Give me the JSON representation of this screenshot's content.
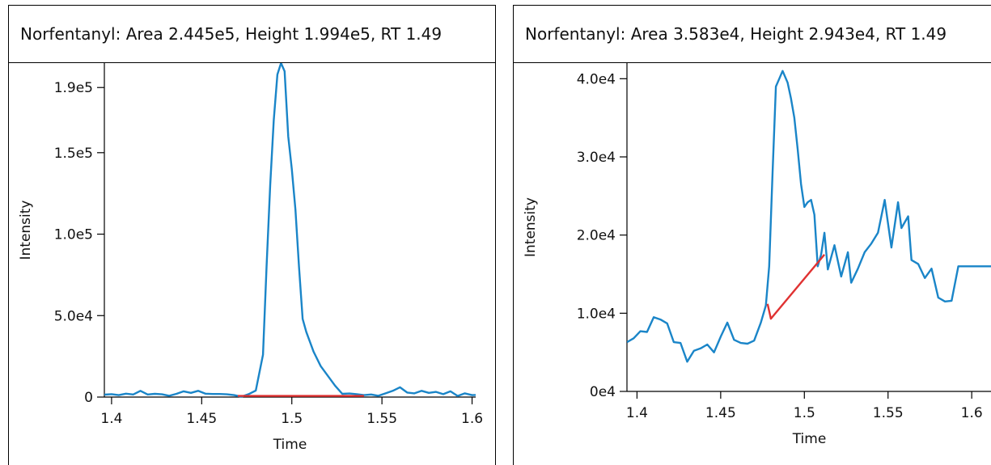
{
  "colors": {
    "trace": "#1a85c8",
    "baseline": "#e03232",
    "axis": "#000000"
  },
  "chart_data": [
    {
      "type": "line",
      "title": "Norfentanyl: Area 2.445e5, Height 1.994e5, RT 1.49",
      "xlabel": "Time",
      "ylabel": "Intensity",
      "xlim": [
        1.396,
        1.602
      ],
      "ylim": [
        0,
        205000.0
      ],
      "xticks": [
        1.4,
        1.45,
        1.5,
        1.55,
        1.6
      ],
      "xtick_labels": [
        "1.4",
        "1.45",
        "1.5",
        "1.55",
        "1.6"
      ],
      "yticks": [
        0,
        50000,
        100000,
        150000,
        190000
      ],
      "ytick_labels": [
        "0",
        "5.0e4",
        "1.0e5",
        "1.5e5",
        "1.9e5"
      ],
      "grid": false,
      "series": [
        {
          "role": "trace",
          "x": [
            1.396,
            1.4,
            1.404,
            1.408,
            1.412,
            1.416,
            1.42,
            1.424,
            1.428,
            1.432,
            1.436,
            1.44,
            1.444,
            1.448,
            1.452,
            1.456,
            1.46,
            1.464,
            1.468,
            1.472,
            1.476,
            1.48,
            1.484,
            1.486,
            1.488,
            1.49,
            1.492,
            1.494,
            1.496,
            1.498,
            1.5,
            1.502,
            1.504,
            1.506,
            1.508,
            1.512,
            1.516,
            1.52,
            1.524,
            1.528,
            1.532,
            1.536,
            1.54,
            1.544,
            1.548,
            1.552,
            1.556,
            1.56,
            1.564,
            1.568,
            1.572,
            1.576,
            1.58,
            1.584,
            1.588,
            1.592,
            1.596,
            1.6,
            1.602
          ],
          "y": [
            1500,
            1800,
            1200,
            2100,
            1600,
            3800,
            1600,
            2000,
            1700,
            800,
            2000,
            3500,
            2600,
            3800,
            2100,
            1900,
            1900,
            1700,
            1200,
            200,
            1800,
            4000,
            26000,
            80000,
            130000,
            170000,
            198000,
            205000,
            200000,
            160000,
            140000,
            115000,
            80000,
            48000,
            40000,
            28000,
            19000,
            13000,
            7000,
            2000,
            2200,
            1800,
            1200,
            1600,
            800,
            2300,
            3800,
            6000,
            2800,
            2300,
            3800,
            2600,
            3200,
            1800,
            3500,
            700,
            2300,
            1200,
            1300
          ]
        },
        {
          "role": "baseline",
          "x": [
            1.47,
            1.54
          ],
          "y": [
            700,
            700
          ]
        }
      ]
    },
    {
      "type": "line",
      "title": "Norfentanyl: Area 3.583e4, Height 2.943e4, RT 1.49",
      "xlabel": "Time",
      "ylabel": "Intensity",
      "xlim": [
        1.394,
        1.612
      ],
      "ylim": [
        0,
        42000
      ],
      "xticks": [
        1.4,
        1.45,
        1.5,
        1.55,
        1.6
      ],
      "xtick_labels": [
        "1.4",
        "1.45",
        "1.5",
        "1.55",
        "1.6"
      ],
      "yticks": [
        0,
        10000,
        20000,
        30000,
        40000
      ],
      "ytick_labels": [
        "0e4",
        "1.0e4",
        "2.0e4",
        "3.0e4",
        "4.0e4"
      ],
      "grid": false,
      "series": [
        {
          "role": "trace",
          "x": [
            1.394,
            1.398,
            1.402,
            1.406,
            1.41,
            1.414,
            1.418,
            1.422,
            1.426,
            1.43,
            1.434,
            1.438,
            1.442,
            1.446,
            1.45,
            1.454,
            1.458,
            1.462,
            1.466,
            1.47,
            1.474,
            1.477,
            1.479,
            1.481,
            1.483,
            1.485,
            1.487,
            1.49,
            1.492,
            1.494,
            1.496,
            1.498,
            1.5,
            1.502,
            1.504,
            1.506,
            1.508,
            1.51,
            1.512,
            1.514,
            1.518,
            1.522,
            1.526,
            1.528,
            1.532,
            1.536,
            1.54,
            1.544,
            1.548,
            1.552,
            1.556,
            1.558,
            1.562,
            1.564,
            1.568,
            1.572,
            1.576,
            1.58,
            1.584,
            1.588,
            1.592,
            1.596,
            1.6,
            1.604,
            1.608,
            1.612
          ],
          "y": [
            6300,
            6800,
            7700,
            7600,
            9500,
            9200,
            8700,
            6300,
            6200,
            3800,
            5200,
            5500,
            6000,
            5000,
            7000,
            8800,
            6600,
            6200,
            6100,
            6500,
            8800,
            11000,
            16000,
            28000,
            39000,
            40000,
            41000,
            39500,
            37500,
            35000,
            31000,
            26500,
            23600,
            24200,
            24500,
            22600,
            16000,
            17500,
            20300,
            15600,
            18700,
            14700,
            17800,
            13900,
            15700,
            17800,
            18900,
            20300,
            24500,
            18400,
            24200,
            20900,
            22400,
            16800,
            16300,
            14500,
            15700,
            12000,
            11500,
            11600,
            16000,
            16000,
            16000,
            16000,
            16000,
            16000
          ]
        },
        {
          "role": "baseline",
          "x": [
            1.478,
            1.48,
            1.512
          ],
          "y": [
            11200,
            9300,
            17500
          ]
        }
      ]
    }
  ]
}
